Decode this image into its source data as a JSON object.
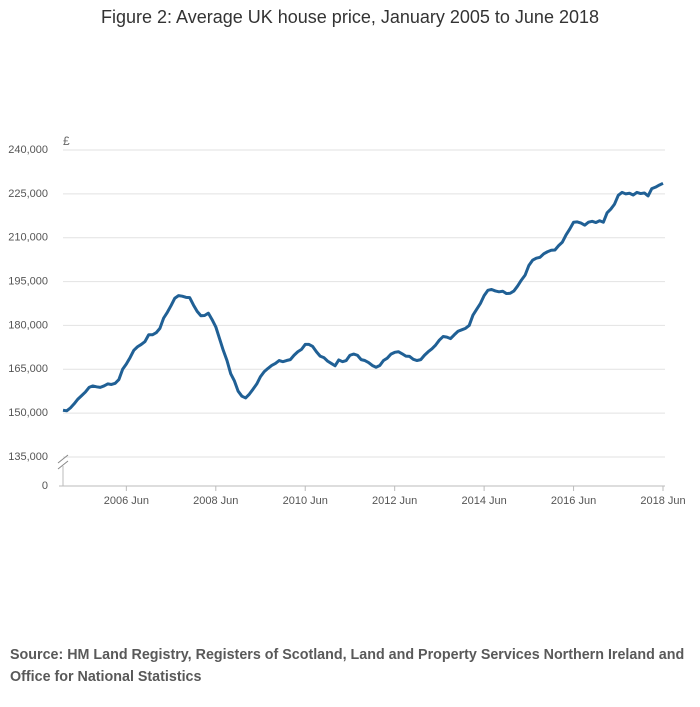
{
  "chart_data": {
    "type": "line",
    "title": "Figure 2: Average UK house price, January 2005 to June 2018",
    "y_unit": "£",
    "source": "Source: HM Land Registry, Registers of Scotland, Land and Property Services Northern Ireland and Office for National Statistics",
    "x": [
      "2005 Jan",
      "2005 Feb",
      "2005 Mar",
      "2005 Apr",
      "2005 May",
      "2005 Jun",
      "2005 Jul",
      "2005 Aug",
      "2005 Sep",
      "2005 Oct",
      "2005 Nov",
      "2005 Dec",
      "2006 Jan",
      "2006 Feb",
      "2006 Mar",
      "2006 Apr",
      "2006 May",
      "2006 Jun",
      "2006 Jul",
      "2006 Aug",
      "2006 Sep",
      "2006 Oct",
      "2006 Nov",
      "2006 Dec",
      "2007 Jan",
      "2007 Feb",
      "2007 Mar",
      "2007 Apr",
      "2007 May",
      "2007 Jun",
      "2007 Jul",
      "2007 Aug",
      "2007 Sep",
      "2007 Oct",
      "2007 Nov",
      "2007 Dec",
      "2008 Jan",
      "2008 Feb",
      "2008 Mar",
      "2008 Apr",
      "2008 May",
      "2008 Jun",
      "2008 Jul",
      "2008 Aug",
      "2008 Sep",
      "2008 Oct",
      "2008 Nov",
      "2008 Dec",
      "2009 Jan",
      "2009 Feb",
      "2009 Mar",
      "2009 Apr",
      "2009 May",
      "2009 Jun",
      "2009 Jul",
      "2009 Aug",
      "2009 Sep",
      "2009 Oct",
      "2009 Nov",
      "2009 Dec",
      "2010 Jan",
      "2010 Feb",
      "2010 Mar",
      "2010 Apr",
      "2010 May",
      "2010 Jun",
      "2010 Jul",
      "2010 Aug",
      "2010 Sep",
      "2010 Oct",
      "2010 Nov",
      "2010 Dec",
      "2011 Jan",
      "2011 Feb",
      "2011 Mar",
      "2011 Apr",
      "2011 May",
      "2011 Jun",
      "2011 Jul",
      "2011 Aug",
      "2011 Sep",
      "2011 Oct",
      "2011 Nov",
      "2011 Dec",
      "2012 Jan",
      "2012 Feb",
      "2012 Mar",
      "2012 Apr",
      "2012 May",
      "2012 Jun",
      "2012 Jul",
      "2012 Aug",
      "2012 Sep",
      "2012 Oct",
      "2012 Nov",
      "2012 Dec",
      "2013 Jan",
      "2013 Feb",
      "2013 Mar",
      "2013 Apr",
      "2013 May",
      "2013 Jun",
      "2013 Jul",
      "2013 Aug",
      "2013 Sep",
      "2013 Oct",
      "2013 Nov",
      "2013 Dec",
      "2014 Jan",
      "2014 Feb",
      "2014 Mar",
      "2014 Apr",
      "2014 May",
      "2014 Jun",
      "2014 Jul",
      "2014 Aug",
      "2014 Sep",
      "2014 Oct",
      "2014 Nov",
      "2014 Dec",
      "2015 Jan",
      "2015 Feb",
      "2015 Mar",
      "2015 Apr",
      "2015 May",
      "2015 Jun",
      "2015 Jul",
      "2015 Aug",
      "2015 Sep",
      "2015 Oct",
      "2015 Nov",
      "2015 Dec",
      "2016 Jan",
      "2016 Feb",
      "2016 Mar",
      "2016 Apr",
      "2016 May",
      "2016 Jun",
      "2016 Jul",
      "2016 Aug",
      "2016 Sep",
      "2016 Oct",
      "2016 Nov",
      "2016 Dec",
      "2017 Jan",
      "2017 Feb",
      "2017 Mar",
      "2017 Apr",
      "2017 May",
      "2017 Jun",
      "2017 Jul",
      "2017 Aug",
      "2017 Sep",
      "2017 Oct",
      "2017 Nov",
      "2017 Dec",
      "2018 Jan",
      "2018 Feb",
      "2018 Mar",
      "2018 Apr",
      "2018 May",
      "2018 Jun"
    ],
    "series": [
      {
        "color": "#206095",
        "values": [
          151000,
          150800,
          151800,
          153200,
          154800,
          156000,
          157200,
          158800,
          159300,
          159000,
          158800,
          159300,
          160000,
          159800,
          160200,
          161500,
          165000,
          166800,
          169000,
          171500,
          172700,
          173500,
          174500,
          176800,
          176800,
          177500,
          179000,
          182500,
          184500,
          186800,
          189300,
          190200,
          190000,
          189600,
          189500,
          187000,
          184800,
          183300,
          183400,
          184200,
          182000,
          179500,
          175500,
          171500,
          168000,
          163500,
          161000,
          157500,
          155800,
          155200,
          156500,
          158200,
          160000,
          162500,
          164200,
          165300,
          166300,
          167000,
          168000,
          167600,
          168000,
          168300,
          169800,
          171000,
          171800,
          173500,
          173500,
          172800,
          171000,
          169500,
          169000,
          167800,
          167000,
          166200,
          168200,
          167600,
          168000,
          169800,
          170200,
          169800,
          168300,
          168000,
          167300,
          166300,
          165700,
          166300,
          168000,
          168800,
          170200,
          170800,
          171000,
          170300,
          169500,
          169400,
          168400,
          168000,
          168300,
          169800,
          171000,
          172000,
          173300,
          175000,
          176200,
          176000,
          175500,
          176800,
          178000,
          178500,
          179000,
          180000,
          183500,
          185500,
          187500,
          190200,
          192000,
          192300,
          191800,
          191500,
          191700,
          190900,
          191000,
          191800,
          193500,
          195500,
          197200,
          200500,
          202300,
          203000,
          203300,
          204500,
          205200,
          205700,
          205800,
          207300,
          208500,
          211000,
          213000,
          215300,
          215400,
          215000,
          214300,
          215300,
          215600,
          215200,
          215800,
          215300,
          218500,
          219800,
          221500,
          224500,
          225500,
          225000,
          225200,
          224600,
          225500,
          225100,
          225300,
          224300,
          226800,
          227300,
          228000,
          228600
        ]
      }
    ],
    "xticks": [
      "2006 Jun",
      "2008 Jun",
      "2010 Jun",
      "2012 Jun",
      "2014 Jun",
      "2016 Jun",
      "2018 Jun"
    ],
    "ylim": [
      135000,
      240000
    ],
    "yticks": [
      {
        "value": 0,
        "label": "0"
      },
      {
        "value": 135000,
        "label": "135,000"
      },
      {
        "value": 150000,
        "label": "150,000"
      },
      {
        "value": 165000,
        "label": "165,000"
      },
      {
        "value": 180000,
        "label": "180,000"
      },
      {
        "value": 195000,
        "label": "195,000"
      },
      {
        "value": 210000,
        "label": "210,000"
      },
      {
        "value": 225000,
        "label": "225,000"
      },
      {
        "value": 240000,
        "label": "240,000"
      }
    ],
    "axis_break": true,
    "grid": true
  }
}
